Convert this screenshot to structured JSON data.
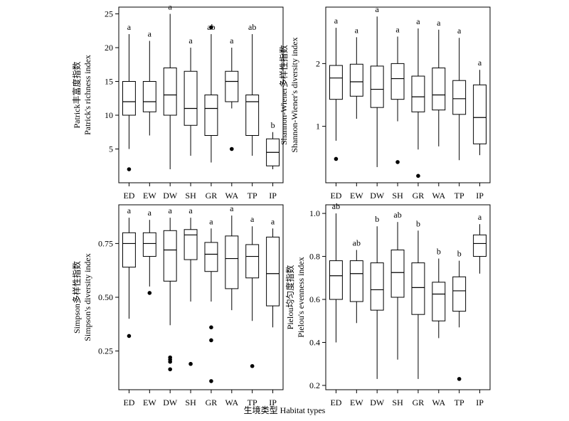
{
  "chart_data": [
    {
      "type": "box",
      "ylabel_cn": "Patrick丰富度指数",
      "ylabel_en": "Patrick's richness index",
      "categories": [
        "ED",
        "EW",
        "DW",
        "SH",
        "GR",
        "WA",
        "TP",
        "IP"
      ],
      "ylim": [
        0,
        26
      ],
      "yticks": [
        5,
        10,
        15,
        20,
        25
      ],
      "tick_format": "int",
      "series": [
        {
          "name": "ED",
          "min": 5,
          "q1": 10,
          "median": 12,
          "q3": 15,
          "max": 22,
          "outliers": [
            2
          ],
          "letter": "a"
        },
        {
          "name": "EW",
          "min": 7,
          "q1": 10.5,
          "median": 12,
          "q3": 15,
          "max": 21,
          "outliers": [],
          "letter": "a"
        },
        {
          "name": "DW",
          "min": 2,
          "q1": 10,
          "median": 13,
          "q3": 17,
          "max": 25,
          "outliers": [],
          "letter": "a"
        },
        {
          "name": "SH",
          "min": 4,
          "q1": 8.5,
          "median": 11,
          "q3": 16.5,
          "max": 20,
          "outliers": [],
          "letter": "a"
        },
        {
          "name": "GR",
          "min": 3,
          "q1": 7,
          "median": 11,
          "q3": 13,
          "max": 22,
          "outliers": [
            23
          ],
          "letter": "ab"
        },
        {
          "name": "WA",
          "min": 11,
          "q1": 12,
          "median": 15,
          "q3": 16.5,
          "max": 20,
          "outliers": [
            5
          ],
          "letter": "a"
        },
        {
          "name": "TP",
          "min": 4,
          "q1": 7,
          "median": 12,
          "q3": 13,
          "max": 22,
          "outliers": [],
          "letter": "ab"
        },
        {
          "name": "IP",
          "min": 2,
          "q1": 2.5,
          "median": 4.5,
          "q3": 6.5,
          "max": 7.5,
          "outliers": [],
          "letter": "b"
        }
      ]
    },
    {
      "type": "box",
      "ylabel_cn": "Shannon-Wiener多样性指数",
      "ylabel_en": "Shannon-Wiener's diversity index",
      "categories": [
        "ED",
        "EW",
        "DW",
        "SH",
        "GR",
        "WA",
        "TP",
        "IP"
      ],
      "ylim": [
        0.1,
        2.9
      ],
      "yticks": [
        1,
        2
      ],
      "tick_format": "int",
      "series": [
        {
          "name": "ED",
          "min": 0.77,
          "q1": 1.43,
          "median": 1.77,
          "q3": 1.97,
          "max": 2.57,
          "outliers": [
            0.48
          ],
          "letter": "a"
        },
        {
          "name": "EW",
          "min": 1.12,
          "q1": 1.48,
          "median": 1.71,
          "q3": 1.99,
          "max": 2.42,
          "outliers": [],
          "letter": "a"
        },
        {
          "name": "DW",
          "min": 0.35,
          "q1": 1.3,
          "median": 1.59,
          "q3": 1.96,
          "max": 2.75,
          "outliers": [],
          "letter": "a"
        },
        {
          "name": "SH",
          "min": 1.08,
          "q1": 1.43,
          "median": 1.76,
          "q3": 2.0,
          "max": 2.43,
          "outliers": [
            0.43
          ],
          "letter": "a"
        },
        {
          "name": "GR",
          "min": 0.63,
          "q1": 1.23,
          "median": 1.47,
          "q3": 1.8,
          "max": 2.56,
          "outliers": [
            0.21
          ],
          "letter": "a"
        },
        {
          "name": "WA",
          "min": 0.68,
          "q1": 1.26,
          "median": 1.5,
          "q3": 1.93,
          "max": 2.54,
          "outliers": [],
          "letter": "a"
        },
        {
          "name": "TP",
          "min": 0.46,
          "q1": 1.19,
          "median": 1.44,
          "q3": 1.73,
          "max": 2.41,
          "outliers": [],
          "letter": "a"
        },
        {
          "name": "IP",
          "min": 0.54,
          "q1": 0.72,
          "median": 1.14,
          "q3": 1.66,
          "max": 1.9,
          "outliers": [],
          "letter": "a"
        }
      ]
    },
    {
      "type": "box",
      "ylabel_cn": "Simpson多样性指数",
      "ylabel_en": "Simpson's diversity index",
      "categories": [
        "ED",
        "EW",
        "DW",
        "SH",
        "GR",
        "WA",
        "TP",
        "IP"
      ],
      "ylim": [
        0.07,
        0.93
      ],
      "yticks": [
        0.25,
        0.5,
        0.75
      ],
      "tick_format": "2dp",
      "series": [
        {
          "name": "ED",
          "min": 0.4,
          "q1": 0.64,
          "median": 0.75,
          "q3": 0.8,
          "max": 0.87,
          "outliers": [
            0.32
          ],
          "letter": "a"
        },
        {
          "name": "EW",
          "min": 0.55,
          "q1": 0.69,
          "median": 0.75,
          "q3": 0.8,
          "max": 0.86,
          "outliers": [
            0.52
          ],
          "letter": "a"
        },
        {
          "name": "DW",
          "min": 0.37,
          "q1": 0.575,
          "median": 0.72,
          "q3": 0.81,
          "max": 0.87,
          "outliers": [
            0.22,
            0.21,
            0.2,
            0.165
          ],
          "letter": "a"
        },
        {
          "name": "SH",
          "min": 0.48,
          "q1": 0.675,
          "median": 0.79,
          "q3": 0.815,
          "max": 0.87,
          "outliers": [
            0.19
          ],
          "letter": "a"
        },
        {
          "name": "GR",
          "min": 0.48,
          "q1": 0.62,
          "median": 0.7,
          "q3": 0.755,
          "max": 0.82,
          "outliers": [
            0.36,
            0.3,
            0.11
          ],
          "letter": "a"
        },
        {
          "name": "WA",
          "min": 0.44,
          "q1": 0.54,
          "median": 0.68,
          "q3": 0.785,
          "max": 0.88,
          "outliers": [],
          "letter": "a"
        },
        {
          "name": "TP",
          "min": 0.39,
          "q1": 0.59,
          "median": 0.69,
          "q3": 0.745,
          "max": 0.83,
          "outliers": [
            0.18
          ],
          "letter": "a"
        },
        {
          "name": "IP",
          "min": 0.36,
          "q1": 0.46,
          "median": 0.61,
          "q3": 0.78,
          "max": 0.82,
          "outliers": [],
          "letter": "a"
        }
      ]
    },
    {
      "type": "box",
      "ylabel_cn": "Pielou均匀度指数",
      "ylabel_en": "Pielou's evenness index",
      "categories": [
        "ED",
        "EW",
        "DW",
        "SH",
        "GR",
        "WA",
        "TP",
        "IP"
      ],
      "ylim": [
        0.18,
        1.04
      ],
      "yticks": [
        0.2,
        0.4,
        0.6,
        0.8,
        1.0
      ],
      "tick_format": "1dp",
      "series": [
        {
          "name": "ED",
          "min": 0.4,
          "q1": 0.6,
          "median": 0.71,
          "q3": 0.78,
          "max": 1.0,
          "outliers": [],
          "letter": "ab"
        },
        {
          "name": "EW",
          "min": 0.49,
          "q1": 0.59,
          "median": 0.72,
          "q3": 0.78,
          "max": 0.83,
          "outliers": [],
          "letter": "ab"
        },
        {
          "name": "DW",
          "min": 0.23,
          "q1": 0.55,
          "median": 0.645,
          "q3": 0.77,
          "max": 0.94,
          "outliers": [],
          "letter": "b"
        },
        {
          "name": "SH",
          "min": 0.32,
          "q1": 0.61,
          "median": 0.725,
          "q3": 0.83,
          "max": 0.96,
          "outliers": [],
          "letter": "ab"
        },
        {
          "name": "GR",
          "min": 0.23,
          "q1": 0.53,
          "median": 0.655,
          "q3": 0.77,
          "max": 0.92,
          "outliers": [],
          "letter": "b"
        },
        {
          "name": "WA",
          "min": 0.42,
          "q1": 0.5,
          "median": 0.625,
          "q3": 0.68,
          "max": 0.79,
          "outliers": [],
          "letter": "b"
        },
        {
          "name": "TP",
          "min": 0.47,
          "q1": 0.545,
          "median": 0.64,
          "q3": 0.705,
          "max": 0.78,
          "outliers": [
            0.23
          ],
          "letter": "b"
        },
        {
          "name": "IP",
          "min": 0.72,
          "q1": 0.8,
          "median": 0.86,
          "q3": 0.9,
          "max": 0.95,
          "outliers": [],
          "letter": "a"
        }
      ]
    }
  ],
  "xlabel": "生境类型 Habitat types"
}
